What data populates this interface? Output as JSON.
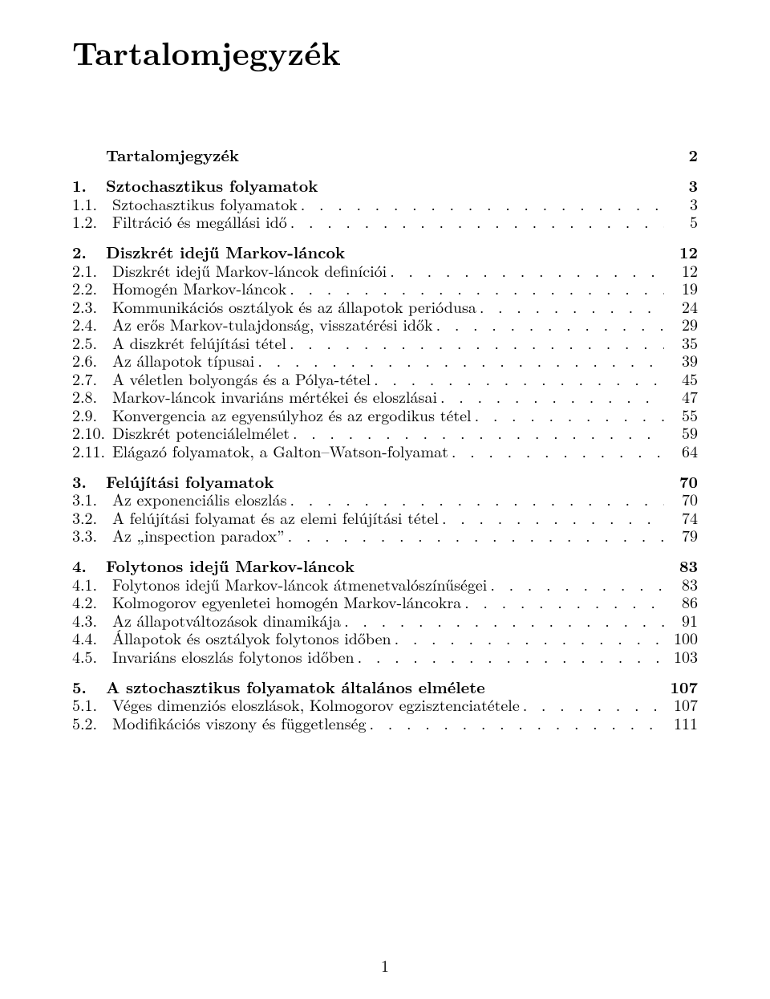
{
  "title": "Tartalomjegyzék",
  "page_number": "1",
  "entries": [
    {
      "level": "chapter",
      "num": "",
      "label": "Tartalomjegyzék",
      "page": "2"
    },
    {
      "level": "chapter",
      "num": "1.",
      "label": "Sztochasztikus folyamatok",
      "page": "3"
    },
    {
      "level": "section",
      "num": "1.1.",
      "label": "Sztochasztikus folyamatok",
      "page": "3"
    },
    {
      "level": "section",
      "num": "1.2.",
      "label": "Filtráció és megállási idő",
      "page": "5"
    },
    {
      "level": "chapter",
      "num": "2.",
      "label": "Diszkrét idejű Markov-láncok",
      "page": "12"
    },
    {
      "level": "section",
      "num": "2.1.",
      "label": "Diszkrét idejű Markov-láncok definíciói",
      "page": "12"
    },
    {
      "level": "section",
      "num": "2.2.",
      "label": "Homogén Markov-láncok",
      "page": "19"
    },
    {
      "level": "section",
      "num": "2.3.",
      "label": "Kommunikációs osztályok és az állapotok periódusa",
      "page": "24"
    },
    {
      "level": "section",
      "num": "2.4.",
      "label": "Az erős Markov-tulajdonság, visszatérési idők",
      "page": "29"
    },
    {
      "level": "section",
      "num": "2.5.",
      "label": "A diszkrét felújítási tétel",
      "page": "35"
    },
    {
      "level": "section",
      "num": "2.6.",
      "label": "Az állapotok típusai",
      "page": "39"
    },
    {
      "level": "section",
      "num": "2.7.",
      "label": "A véletlen bolyongás és a Pólya-tétel",
      "page": "45"
    },
    {
      "level": "section",
      "num": "2.8.",
      "label": "Markov-láncok invariáns mértékei és eloszlásai",
      "page": "47"
    },
    {
      "level": "section",
      "num": "2.9.",
      "label": "Konvergencia az egyensúlyhoz és az ergodikus tétel",
      "page": "55"
    },
    {
      "level": "section",
      "num": "2.10.",
      "label": "Diszkrét potenciálelmélet",
      "page": "59"
    },
    {
      "level": "section",
      "num": "2.11.",
      "label": "Elágazó folyamatok, a Galton–Watson-folyamat",
      "page": "64"
    },
    {
      "level": "chapter",
      "num": "3.",
      "label": "Felújítási folyamatok",
      "page": "70"
    },
    {
      "level": "section",
      "num": "3.1.",
      "label": "Az exponenciális eloszlás",
      "page": "70"
    },
    {
      "level": "section",
      "num": "3.2.",
      "label": "A felújítási folyamat és az elemi felújítási tétel",
      "page": "74"
    },
    {
      "level": "section",
      "num": "3.3.",
      "label": "Az „inspection paradox”",
      "page": "79"
    },
    {
      "level": "chapter",
      "num": "4.",
      "label": "Folytonos idejű Markov-láncok",
      "page": "83"
    },
    {
      "level": "section",
      "num": "4.1.",
      "label": "Folytonos idejű Markov-láncok átmenetvalószínűségei",
      "page": "83"
    },
    {
      "level": "section",
      "num": "4.2.",
      "label": "Kolmogorov egyenletei homogén Markov-láncokra",
      "page": "86"
    },
    {
      "level": "section",
      "num": "4.3.",
      "label": "Az állapotváltozások dinamikája",
      "page": "91"
    },
    {
      "level": "section",
      "num": "4.4.",
      "label": "Állapotok és osztályok folytonos időben",
      "page": "100"
    },
    {
      "level": "section",
      "num": "4.5.",
      "label": "Invariáns eloszlás folytonos időben",
      "page": "103"
    },
    {
      "level": "chapter",
      "num": "5.",
      "label": "A sztochasztikus folyamatok általános elmélete",
      "page": "107"
    },
    {
      "level": "section",
      "num": "5.1.",
      "label": "Véges dimenziós eloszlások, Kolmogorov egzisztenciatétele",
      "page": "107"
    },
    {
      "level": "section",
      "num": "5.2.",
      "label": "Modifikációs viszony és függetlenség",
      "page": "111"
    }
  ],
  "leader_dots": ". . . . . . . . . . . . . . . . . . . . . . . . . . . . . . . . . . . . . . . . . . . . . . . . . . . . . . . . . . . . . . . . . . . . . . . . . . . . . . . . . . . . . . . . . . . . . . . . . . . . . . . . . . . . . . . . . ."
}
